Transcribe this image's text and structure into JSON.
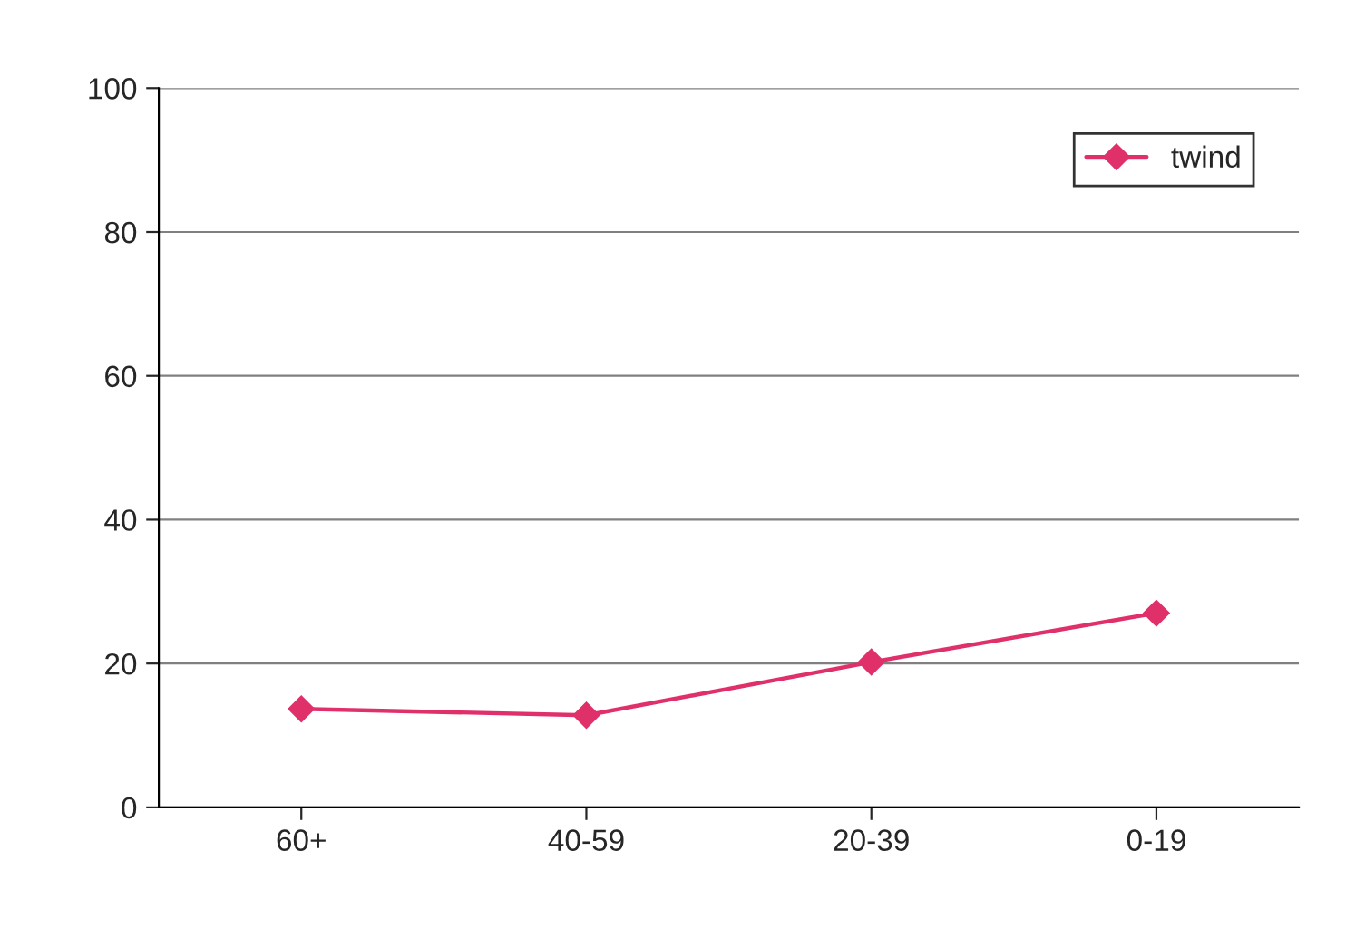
{
  "chart_data": {
    "type": "line",
    "categories": [
      "60+",
      "40-59",
      "20-39",
      "0-19"
    ],
    "series": [
      {
        "name": "twind",
        "color": "#e0306a",
        "values": [
          13.7,
          12.8,
          20.2,
          27.0
        ]
      }
    ],
    "ylim": [
      0,
      100
    ],
    "yticks": [
      0,
      20,
      40,
      60,
      80,
      100
    ],
    "grid": "y",
    "legend": "top right",
    "marker": "diamond",
    "line_style": "solid"
  }
}
